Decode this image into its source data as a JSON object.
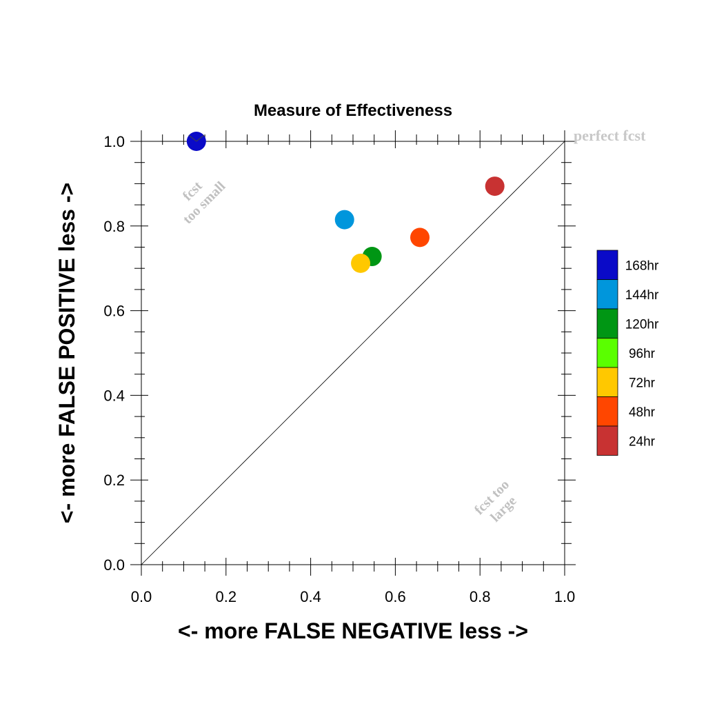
{
  "chart_data": {
    "type": "scatter",
    "title": "Measure of Effectiveness",
    "xlabel": "<- more   FALSE NEGATIVE   less ->",
    "ylabel": "<- more   FALSE POSITIVE   less ->",
    "xlim": [
      0.0,
      1.0
    ],
    "ylim": [
      0.0,
      1.0
    ],
    "xticks": [
      "0.0",
      "0.2",
      "0.4",
      "0.6",
      "0.8",
      "1.0"
    ],
    "yticks": [
      "0.0",
      "0.2",
      "0.4",
      "0.6",
      "0.8",
      "1.0"
    ],
    "grid": false,
    "reference_line": "diagonal",
    "legend_position": "right",
    "legend": [
      {
        "label": "168hr",
        "color": "#0a0ac8"
      },
      {
        "label": "144hr",
        "color": "#0096dc"
      },
      {
        "label": "120hr",
        "color": "#009614"
      },
      {
        "label": "96hr",
        "color": "#5aff00"
      },
      {
        "label": "72hr",
        "color": "#ffc800"
      },
      {
        "label": "48hr",
        "color": "#ff4600"
      },
      {
        "label": "24hr",
        "color": "#c83232"
      }
    ],
    "points": [
      {
        "series": "168hr",
        "x": 0.13,
        "y": 1.0,
        "color": "#0a0ac8"
      },
      {
        "series": "144hr",
        "x": 0.48,
        "y": 0.815,
        "color": "#0096dc"
      },
      {
        "series": "120hr",
        "x": 0.545,
        "y": 0.728,
        "color": "#009614"
      },
      {
        "series": "72hr",
        "x": 0.518,
        "y": 0.712,
        "color": "#ffc800"
      },
      {
        "series": "48hr",
        "x": 0.658,
        "y": 0.773,
        "color": "#ff4600"
      },
      {
        "series": "24hr",
        "x": 0.835,
        "y": 0.894,
        "color": "#c83232"
      }
    ],
    "annotations": {
      "perfect": "perfect fcst",
      "too_small_1": "fcst",
      "too_small_2": "too small",
      "too_large_1": "fcst too",
      "too_large_2": "large"
    }
  }
}
